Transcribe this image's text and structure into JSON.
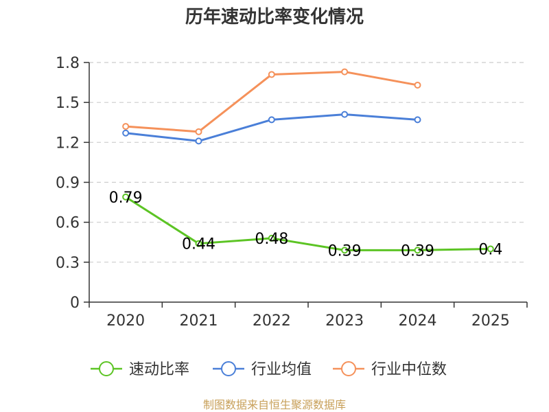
{
  "chart_data": {
    "type": "line",
    "title": "历年速动比率变化情况",
    "categories": [
      "2020",
      "2021",
      "2022",
      "2023",
      "2024",
      "2025"
    ],
    "ylim": [
      0,
      1.8
    ],
    "yticks": [
      "0",
      "0.3",
      "0.6",
      "0.9",
      "1.2",
      "1.5",
      "1.8"
    ],
    "grid": true,
    "legend_position": "bottom",
    "series": [
      {
        "name": "速动比率",
        "color": "#5cc424",
        "values": [
          0.79,
          0.44,
          0.48,
          0.39,
          0.39,
          0.4
        ],
        "labels": [
          "0.79",
          "0.44",
          "0.48",
          "0.39",
          "0.39",
          "0.4"
        ]
      },
      {
        "name": "行业均值",
        "color": "#4a7fd8",
        "values": [
          1.27,
          1.21,
          1.37,
          1.41,
          1.37,
          null
        ]
      },
      {
        "name": "行业中位数",
        "color": "#f5915a",
        "values": [
          1.32,
          1.28,
          1.71,
          1.73,
          1.63,
          null
        ]
      }
    ]
  },
  "source_text": "制图数据来自恒生聚源数据库"
}
